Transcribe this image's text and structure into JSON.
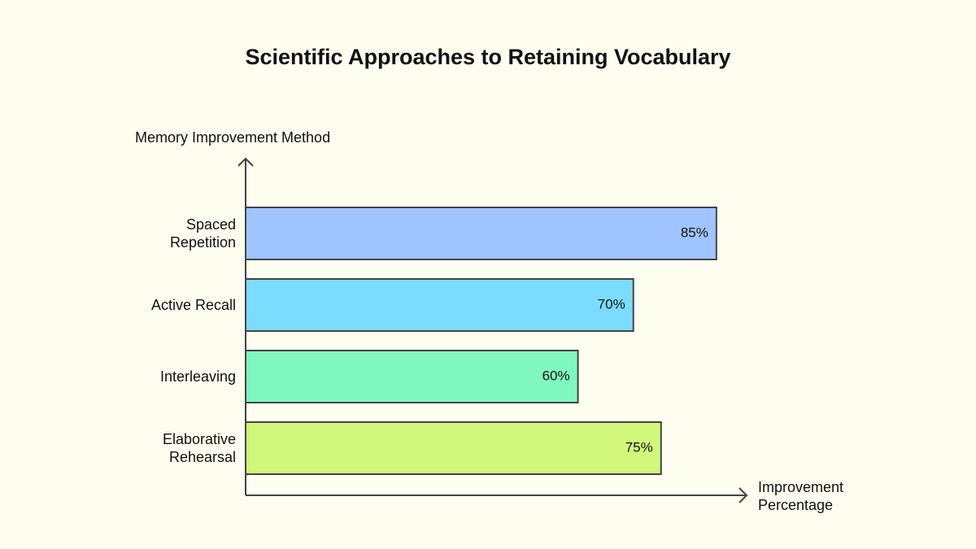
{
  "chart_data": {
    "type": "bar",
    "orientation": "horizontal",
    "title": "Scientific Approaches to Retaining Vocabulary",
    "y_label": "Memory Improvement Method",
    "x_label": "Improvement Percentage",
    "categories": [
      "Spaced Repetition",
      "Active Recall",
      "Interleaving",
      "Elaborative Rehearsal"
    ],
    "values": [
      85,
      70,
      60,
      75
    ],
    "value_labels": [
      "85%",
      "70%",
      "60%",
      "75%"
    ],
    "colors": [
      "#a0c4ff",
      "#7bdcfe",
      "#80f7c0",
      "#d1f77a"
    ],
    "xlim": [
      0,
      100
    ]
  }
}
